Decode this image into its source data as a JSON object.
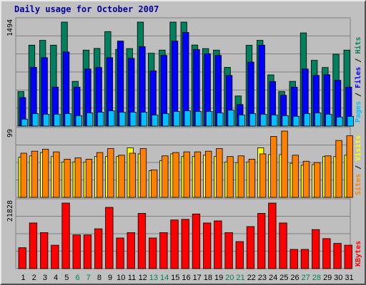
{
  "title": "Daily usage for October 2007",
  "colors": {
    "background": "#c0c0c0",
    "panel": "#bebebe",
    "hits": "#00805c",
    "files": "#0000ff",
    "pages": "#00c0ff",
    "visits": "#ffff00",
    "sites": "#ff8000",
    "kbytes": "#ff0000",
    "weekday_label": "#000000",
    "weekend_label": "#00805c",
    "title": "#0000a0",
    "hits_label": "#00805c",
    "files_label": "#0000ff",
    "pages_label": "#00c0ff",
    "visits_label": "#ffff00",
    "sites_label": "#ff8000",
    "kbytes_label": "#ff0000",
    "separator": "#000000"
  },
  "chart_data": [
    {
      "type": "bar",
      "panel": "hits-files-pages",
      "categories": [
        "1",
        "2",
        "3",
        "4",
        "5",
        "6",
        "7",
        "8",
        "9",
        "10",
        "11",
        "12",
        "13",
        "14",
        "15",
        "16",
        "17",
        "18",
        "19",
        "20",
        "21",
        "22",
        "23",
        "24",
        "25",
        "26",
        "27",
        "28",
        "29",
        "30",
        "31"
      ],
      "weekend_days": [
        6,
        7,
        13,
        14,
        20,
        21,
        27,
        28
      ],
      "ymax_label": "1494",
      "ylim": [
        0,
        1494
      ],
      "side_labels": [
        "Pages",
        "Files",
        "Hits"
      ],
      "series": [
        {
          "name": "Hits",
          "values": [
            498,
            1163,
            1232,
            1163,
            1494,
            643,
            1092,
            1116,
            1358,
            1103,
            1114,
            1494,
            1047,
            1092,
            1494,
            1494,
            1165,
            1114,
            1092,
            844,
            433,
            1161,
            1232,
            736,
            498,
            643,
            1339,
            945,
            842,
            1033,
            1092
          ]
        },
        {
          "name": "Files",
          "values": [
            410,
            844,
            983,
            560,
            1065,
            560,
            820,
            842,
            983,
            1222,
            973,
            1142,
            794,
            1016,
            1222,
            1346,
            1100,
            1040,
            1016,
            728,
            310,
            920,
            1163,
            640,
            443,
            560,
            820,
            728,
            738,
            658,
            560
          ]
        },
        {
          "name": "Pages",
          "values": [
            100,
            180,
            170,
            170,
            180,
            150,
            190,
            200,
            220,
            200,
            200,
            200,
            160,
            180,
            210,
            220,
            210,
            210,
            190,
            230,
            160,
            180,
            170,
            160,
            150,
            140,
            180,
            190,
            170,
            130,
            140
          ]
        }
      ]
    },
    {
      "type": "bar",
      "panel": "visits-sites",
      "categories": [
        "1",
        "2",
        "3",
        "4",
        "5",
        "6",
        "7",
        "8",
        "9",
        "10",
        "11",
        "12",
        "13",
        "14",
        "15",
        "16",
        "17",
        "18",
        "19",
        "20",
        "21",
        "22",
        "23",
        "24",
        "25",
        "26",
        "27",
        "28",
        "29",
        "30",
        "31"
      ],
      "ymax_label": "99",
      "ylim": [
        0,
        99
      ],
      "side_labels": [
        "Sites",
        "Visits"
      ],
      "series": [
        {
          "name": "Sites",
          "values": [
            66,
            69,
            72,
            68,
            57,
            59,
            57,
            67,
            73,
            63,
            66,
            73,
            41,
            62,
            67,
            68,
            68,
            69,
            73,
            61,
            62,
            57,
            65,
            91,
            99,
            63,
            54,
            52,
            62,
            85,
            92
          ]
        },
        {
          "name": "Visits",
          "values": [
            60,
            62,
            67,
            61,
            53,
            53,
            53,
            61,
            61,
            61,
            74,
            65,
            40,
            55,
            65,
            61,
            61,
            63,
            61,
            53,
            52,
            53,
            74,
            64,
            64,
            51,
            48,
            49,
            61,
            61,
            63
          ]
        }
      ]
    },
    {
      "type": "bar",
      "panel": "kbytes",
      "categories": [
        "1",
        "2",
        "3",
        "4",
        "5",
        "6",
        "7",
        "8",
        "9",
        "10",
        "11",
        "12",
        "13",
        "14",
        "15",
        "16",
        "17",
        "18",
        "19",
        "20",
        "21",
        "22",
        "23",
        "24",
        "25",
        "26",
        "27",
        "28",
        "29",
        "30",
        "31"
      ],
      "ymax_label": "21828",
      "ylim": [
        0,
        21828
      ],
      "side_labels": [
        "KBytes"
      ],
      "series": [
        {
          "name": "KBytes",
          "values": [
            6960,
            15200,
            12000,
            7800,
            21828,
            11220,
            11220,
            13260,
            20400,
            10200,
            12000,
            18400,
            10200,
            12000,
            16200,
            16400,
            18200,
            15200,
            15900,
            12000,
            9000,
            14000,
            18400,
            21828,
            15200,
            6400,
            6400,
            13000,
            10000,
            8400,
            7800
          ]
        }
      ]
    }
  ]
}
